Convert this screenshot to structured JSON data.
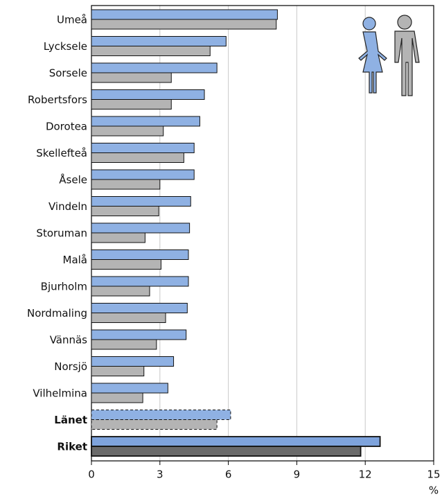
{
  "chart_data": {
    "type": "bar",
    "orientation": "horizontal",
    "categories": [
      "Umeå",
      "Lycksele",
      "Sorsele",
      "Robertsfors",
      "Dorotea",
      "Skellefteå",
      "Åsele",
      "Vindeln",
      "Storuman",
      "Malå",
      "Bjurholm",
      "Nordmaling",
      "Vännäs",
      "Norsjö",
      "Vilhelmina",
      "Länet",
      "Riket"
    ],
    "series": [
      {
        "color": "#8fb1e3",
        "values": [
          8.15,
          5.9,
          5.5,
          4.95,
          4.75,
          4.5,
          4.5,
          4.35,
          4.3,
          4.25,
          4.25,
          4.2,
          4.15,
          3.6,
          3.35,
          6.1,
          12.65
        ]
      },
      {
        "color": "#b4b4b4",
        "values": [
          8.1,
          5.2,
          3.5,
          3.5,
          3.15,
          4.05,
          3.0,
          2.95,
          2.35,
          3.05,
          2.55,
          3.25,
          2.85,
          2.3,
          2.25,
          5.5,
          11.8
        ]
      }
    ],
    "dashed_categories": [
      "Länet"
    ],
    "bold_categories": [
      "Länet",
      "Riket"
    ],
    "dark_categories": [
      "Riket"
    ],
    "dark_colors": [
      "#7ea3dc",
      "#6a6a6a"
    ],
    "xlim": [
      0,
      15
    ],
    "xticks": [
      0,
      3,
      6,
      9,
      12,
      15
    ],
    "x_unit": "%",
    "grid": true
  }
}
